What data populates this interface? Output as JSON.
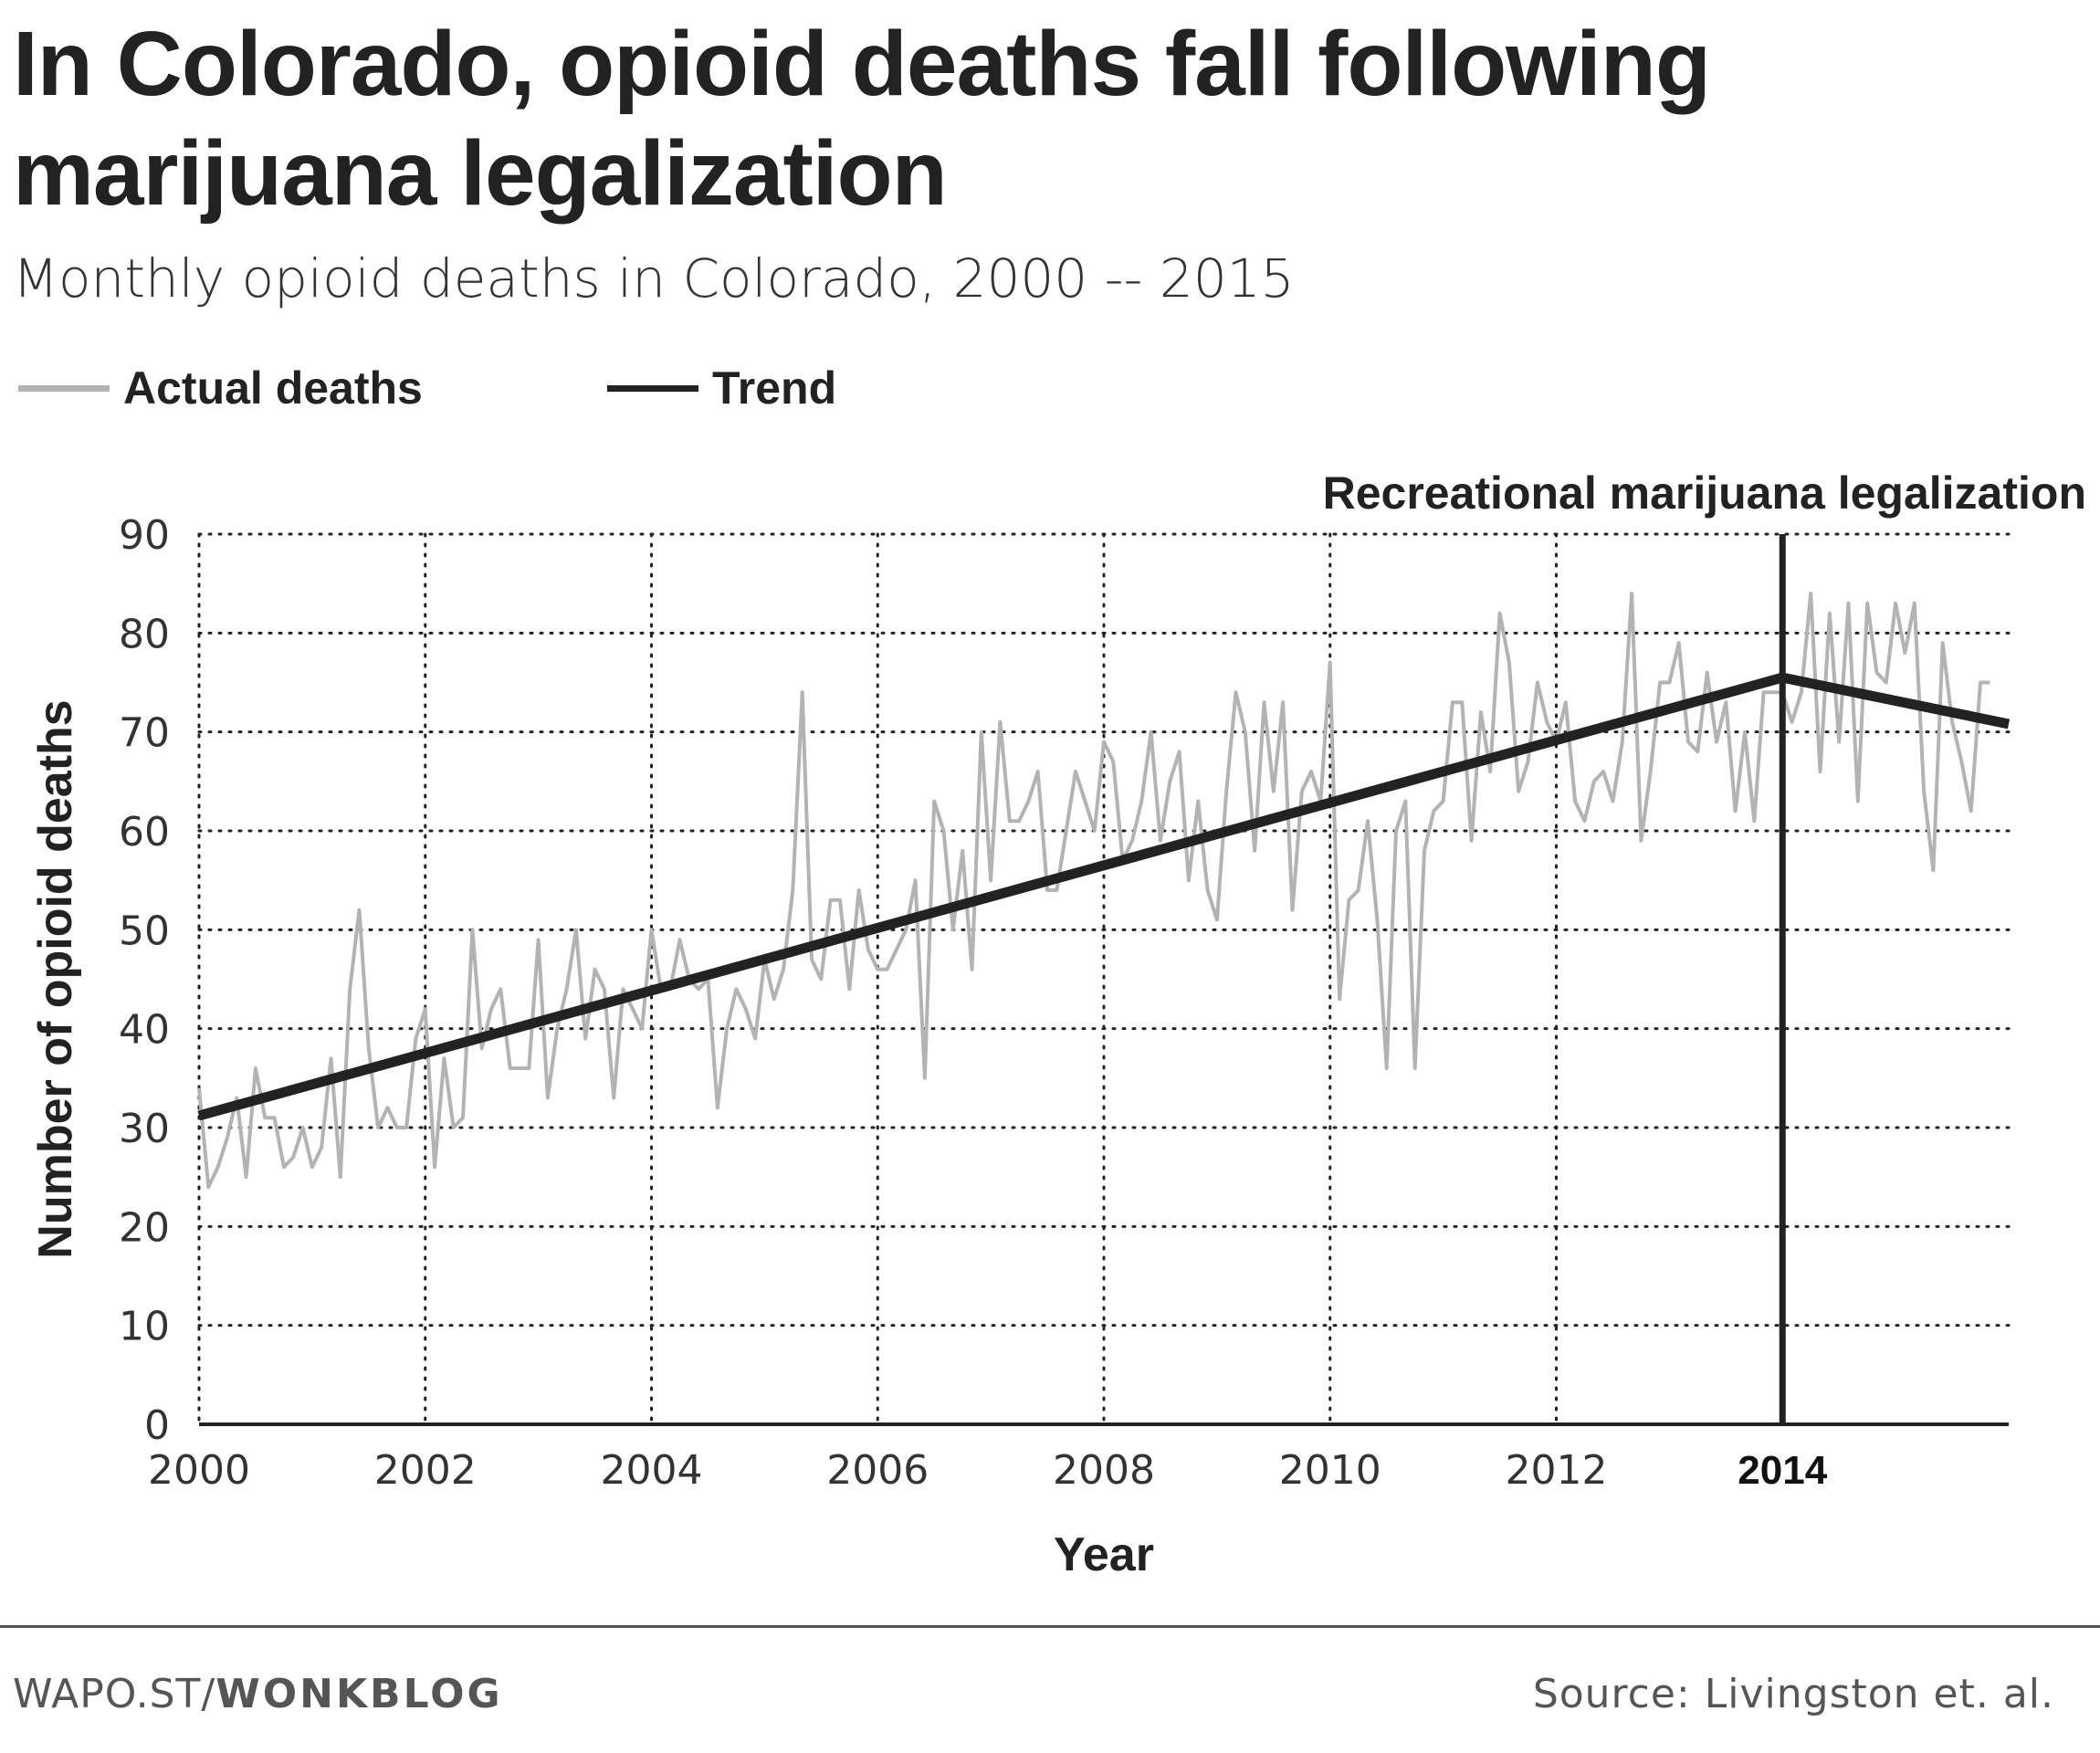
{
  "header": {
    "title": "In Colorado, opioid deaths fall following marijuana legalization",
    "subtitle": "Monthly opioid deaths in Colorado, 2000 -- 2015"
  },
  "legend": [
    {
      "label": "Actual deaths",
      "color": "#b3b3b3"
    },
    {
      "label": "Trend",
      "color": "#222222"
    }
  ],
  "footer": {
    "source_prefix": "WAPO.ST/",
    "source_brand": "WONKBLOG",
    "credit": "Source: Livingston et. al."
  },
  "chart_data": {
    "type": "line",
    "title": "Monthly opioid deaths in Colorado, 2000 -- 2015",
    "xlabel": "Year",
    "ylabel": "Number of opioid deaths",
    "xlim": [
      2000,
      2016
    ],
    "ylim": [
      0,
      90
    ],
    "x_ticks": [
      {
        "value": 2000,
        "label": "2000"
      },
      {
        "value": 2002,
        "label": "2002"
      },
      {
        "value": 2004,
        "label": "2004"
      },
      {
        "value": 2006,
        "label": "2006"
      },
      {
        "value": 2008,
        "label": "2008"
      },
      {
        "value": 2010,
        "label": "2010"
      },
      {
        "value": 2012,
        "label": "2012"
      },
      {
        "value": 2014,
        "label": "2014",
        "bold": true
      }
    ],
    "y_ticks": [
      0,
      10,
      20,
      30,
      40,
      50,
      60,
      70,
      80,
      90
    ],
    "grid": true,
    "series": [
      {
        "name": "Actual deaths",
        "color": "#b3b3b3",
        "x_start": 2000,
        "step": 0.0833333,
        "values": [
          34,
          24,
          26,
          29,
          33,
          25,
          36,
          31,
          31,
          26,
          27,
          30,
          26,
          28,
          37,
          25,
          44,
          52,
          38,
          30,
          32,
          30,
          30,
          39,
          42,
          26,
          37,
          30,
          31,
          50,
          38,
          42,
          44,
          36,
          36,
          36,
          49,
          33,
          40,
          44,
          50,
          39,
          46,
          44,
          33,
          44,
          42,
          40,
          50,
          44,
          44,
          49,
          45,
          44,
          45,
          32,
          40,
          44,
          42,
          39,
          47,
          43,
          46,
          54,
          74,
          47,
          45,
          53,
          53,
          44,
          54,
          48,
          46,
          46,
          48,
          50,
          55,
          35,
          63,
          60,
          50,
          58,
          46,
          70,
          55,
          71,
          61,
          61,
          63,
          66,
          54,
          54,
          60,
          66,
          63,
          60,
          69,
          67,
          57,
          59,
          63,
          70,
          59,
          65,
          68,
          55,
          63,
          54,
          51,
          64,
          74,
          70,
          58,
          73,
          64,
          73,
          52,
          64,
          66,
          63,
          77,
          43,
          53,
          54,
          61,
          51,
          36,
          60,
          63,
          36,
          58,
          62,
          63,
          73,
          73,
          59,
          72,
          66,
          82,
          77,
          64,
          67,
          75,
          71,
          69,
          73,
          63,
          61,
          65,
          66,
          63,
          69,
          84,
          59,
          66,
          75,
          75,
          79,
          69,
          68,
          76,
          69,
          73,
          62,
          70,
          61,
          74,
          74,
          74,
          71,
          74,
          84,
          66,
          82,
          69,
          83,
          63,
          83,
          76,
          75,
          83,
          78,
          83,
          64,
          56,
          79,
          71,
          67,
          62,
          75,
          75
        ]
      },
      {
        "name": "Trend",
        "color": "#222222",
        "x": [
          2000,
          2014,
          2016
        ],
        "values": [
          31.2,
          75.5,
          70.8
        ]
      }
    ],
    "annotations": [
      {
        "x": 2014,
        "label": "Recreational marijuana legalization",
        "type": "vertical-line"
      }
    ]
  }
}
